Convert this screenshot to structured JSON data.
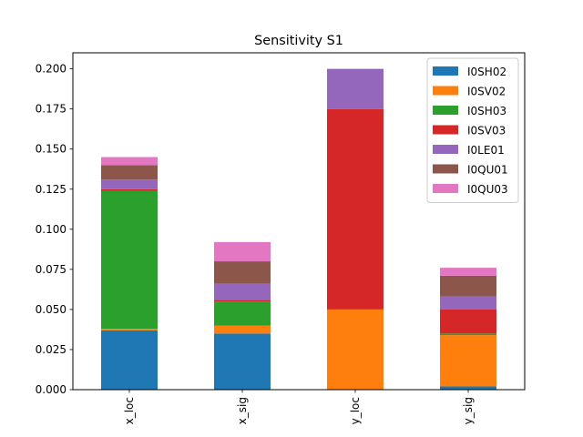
{
  "chart_data": {
    "type": "bar",
    "stacked": true,
    "title": "Sensitivity S1",
    "xlabel": "",
    "ylabel": "",
    "categories": [
      "x_loc",
      "x_sig",
      "y_loc",
      "y_sig"
    ],
    "ylim": [
      0,
      0.21
    ],
    "yticks": [
      "0.000",
      "0.025",
      "0.050",
      "0.075",
      "0.100",
      "0.125",
      "0.150",
      "0.175",
      "0.200"
    ],
    "series": [
      {
        "name": "I0SH02",
        "color": "#1f77b4",
        "values": [
          0.037,
          0.035,
          0.0,
          0.002
        ]
      },
      {
        "name": "I0SV02",
        "color": "#ff7f0e",
        "values": [
          0.001,
          0.005,
          0.05,
          0.032
        ]
      },
      {
        "name": "I0SH03",
        "color": "#2ca02c",
        "values": [
          0.086,
          0.015,
          0.0,
          0.001
        ]
      },
      {
        "name": "I0SV03",
        "color": "#d62728",
        "values": [
          0.001,
          0.001,
          0.125,
          0.015
        ]
      },
      {
        "name": "I0LE01",
        "color": "#9467bd",
        "values": [
          0.006,
          0.01,
          0.025,
          0.008
        ]
      },
      {
        "name": "I0QU01",
        "color": "#8c564b",
        "values": [
          0.009,
          0.014,
          0.0,
          0.013
        ]
      },
      {
        "name": "I0QU03",
        "color": "#e377c2",
        "values": [
          0.005,
          0.012,
          0.0,
          0.005
        ]
      }
    ],
    "legend_position": "top-right",
    "grid": false
  }
}
